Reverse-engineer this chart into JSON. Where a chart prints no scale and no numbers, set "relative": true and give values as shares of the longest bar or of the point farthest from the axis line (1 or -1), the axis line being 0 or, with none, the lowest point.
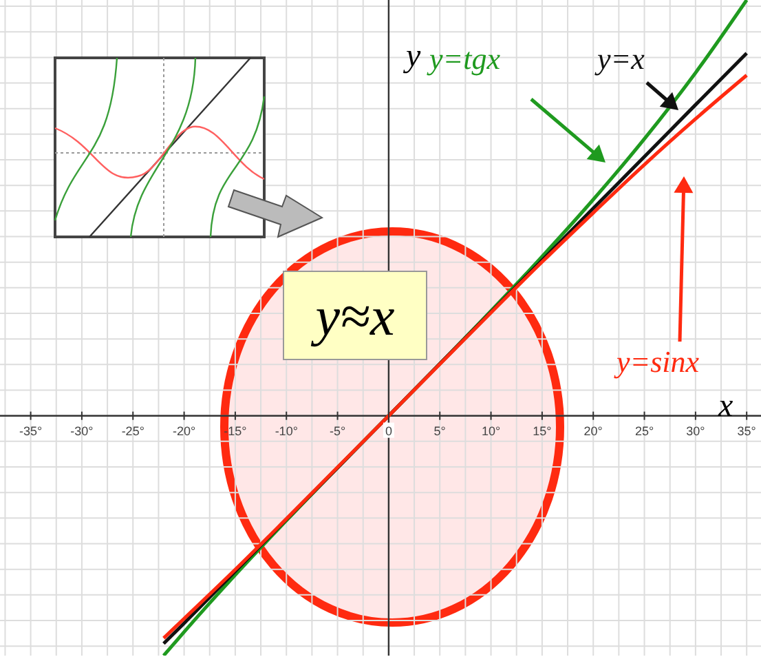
{
  "chart_data": {
    "type": "line",
    "relative": true,
    "xlabel": "x",
    "ylabel": "y",
    "grid": true,
    "annotations": [
      "y≈x"
    ],
    "xlim": [
      -38,
      36.4
    ],
    "xticks": [
      {
        "value": -35,
        "label": "-35°"
      },
      {
        "value": -30,
        "label": "-30°"
      },
      {
        "value": -25,
        "label": "-25°"
      },
      {
        "value": -20,
        "label": "-20°"
      },
      {
        "value": -15,
        "label": "-15°"
      },
      {
        "value": -10,
        "label": "-10°"
      },
      {
        "value": -5,
        "label": "-5°"
      },
      0,
      {
        "value": 5,
        "label": "5°"
      },
      {
        "value": 10,
        "label": "10°"
      },
      {
        "value": 15,
        "label": "15°"
      },
      {
        "value": 20,
        "label": "20°"
      },
      {
        "value": 25,
        "label": "25°"
      },
      {
        "value": 30,
        "label": "30°"
      },
      {
        "value": 35,
        "label": "35°"
      }
    ],
    "x": [
      -22,
      -20,
      -15,
      -10,
      -5,
      0,
      5,
      10,
      15,
      20,
      25,
      30,
      35
    ],
    "series": [
      {
        "name": "y=tgx",
        "color": "#1f9a1f",
        "values": [
          -0.577,
          -0.52,
          -0.383,
          -0.252,
          -0.125,
          0,
          0.125,
          0.252,
          0.383,
          0.52,
          0.666,
          0.825,
          1
        ]
      },
      {
        "name": "y=x",
        "color": "#111111",
        "values": [
          -0.548,
          -0.499,
          -0.374,
          -0.249,
          -0.125,
          0,
          0.125,
          0.249,
          0.374,
          0.499,
          0.623,
          0.748,
          0.872
        ]
      },
      {
        "name": "y=sinx",
        "color": "#ff2a10",
        "values": [
          -0.535,
          -0.488,
          -0.37,
          -0.248,
          -0.124,
          0,
          0.124,
          0.248,
          0.37,
          0.488,
          0.604,
          0.714,
          0.819
        ]
      }
    ]
  }
}
